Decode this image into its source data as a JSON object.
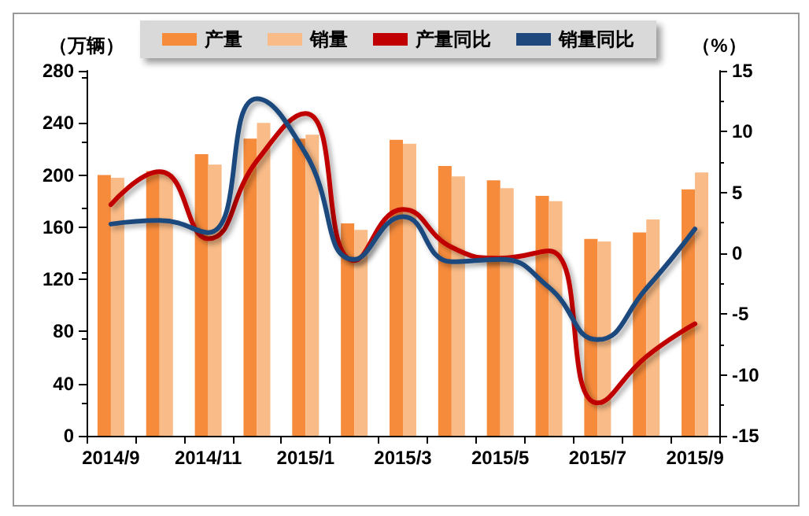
{
  "chart_data": {
    "type": "bar",
    "ylabel": "（万辆）",
    "y2label": "（%）",
    "categories": [
      "2014/9",
      null,
      "2014/11",
      null,
      "2015/1",
      null,
      "2015/3",
      null,
      "2015/5",
      null,
      "2015/7",
      null,
      "2015/9"
    ],
    "series": [
      {
        "name": "产量",
        "type": "bar",
        "color": "#f68b3c",
        "values": [
          200,
          203,
          216,
          228,
          228,
          163,
          227,
          207,
          196,
          184,
          151,
          156,
          189
        ]
      },
      {
        "name": "销量",
        "type": "bar",
        "color": "#f9bb87",
        "values": [
          198,
          201,
          208,
          240,
          231,
          158,
          224,
          199,
          190,
          180,
          149,
          166,
          202
        ]
      },
      {
        "name": "产量同比",
        "type": "line",
        "axis": "y2",
        "color": "#c00000",
        "values": [
          4.0,
          6.7,
          1.2,
          7.6,
          11.5,
          -0.6,
          3.6,
          0.5,
          -0.4,
          0.2,
          -12.3,
          -8.5,
          -5.8
        ]
      },
      {
        "name": "销量同比",
        "type": "line",
        "axis": "y2",
        "color": "#1f497d",
        "values": [
          2.4,
          2.7,
          1.7,
          12.7,
          8.2,
          -0.5,
          3.0,
          -0.7,
          -0.5,
          -2.8,
          -7.1,
          -2.9,
          2.0
        ]
      }
    ],
    "ylim": [
      0,
      280
    ],
    "yticks": [
      0,
      40,
      80,
      120,
      160,
      200,
      240,
      280
    ],
    "y2lim": [
      -15,
      15
    ],
    "y2ticks": [
      -15,
      -10,
      -5,
      0,
      5,
      10,
      15
    ],
    "grid": false,
    "legend": "top",
    "marker": "none",
    "line_style": "solid"
  }
}
